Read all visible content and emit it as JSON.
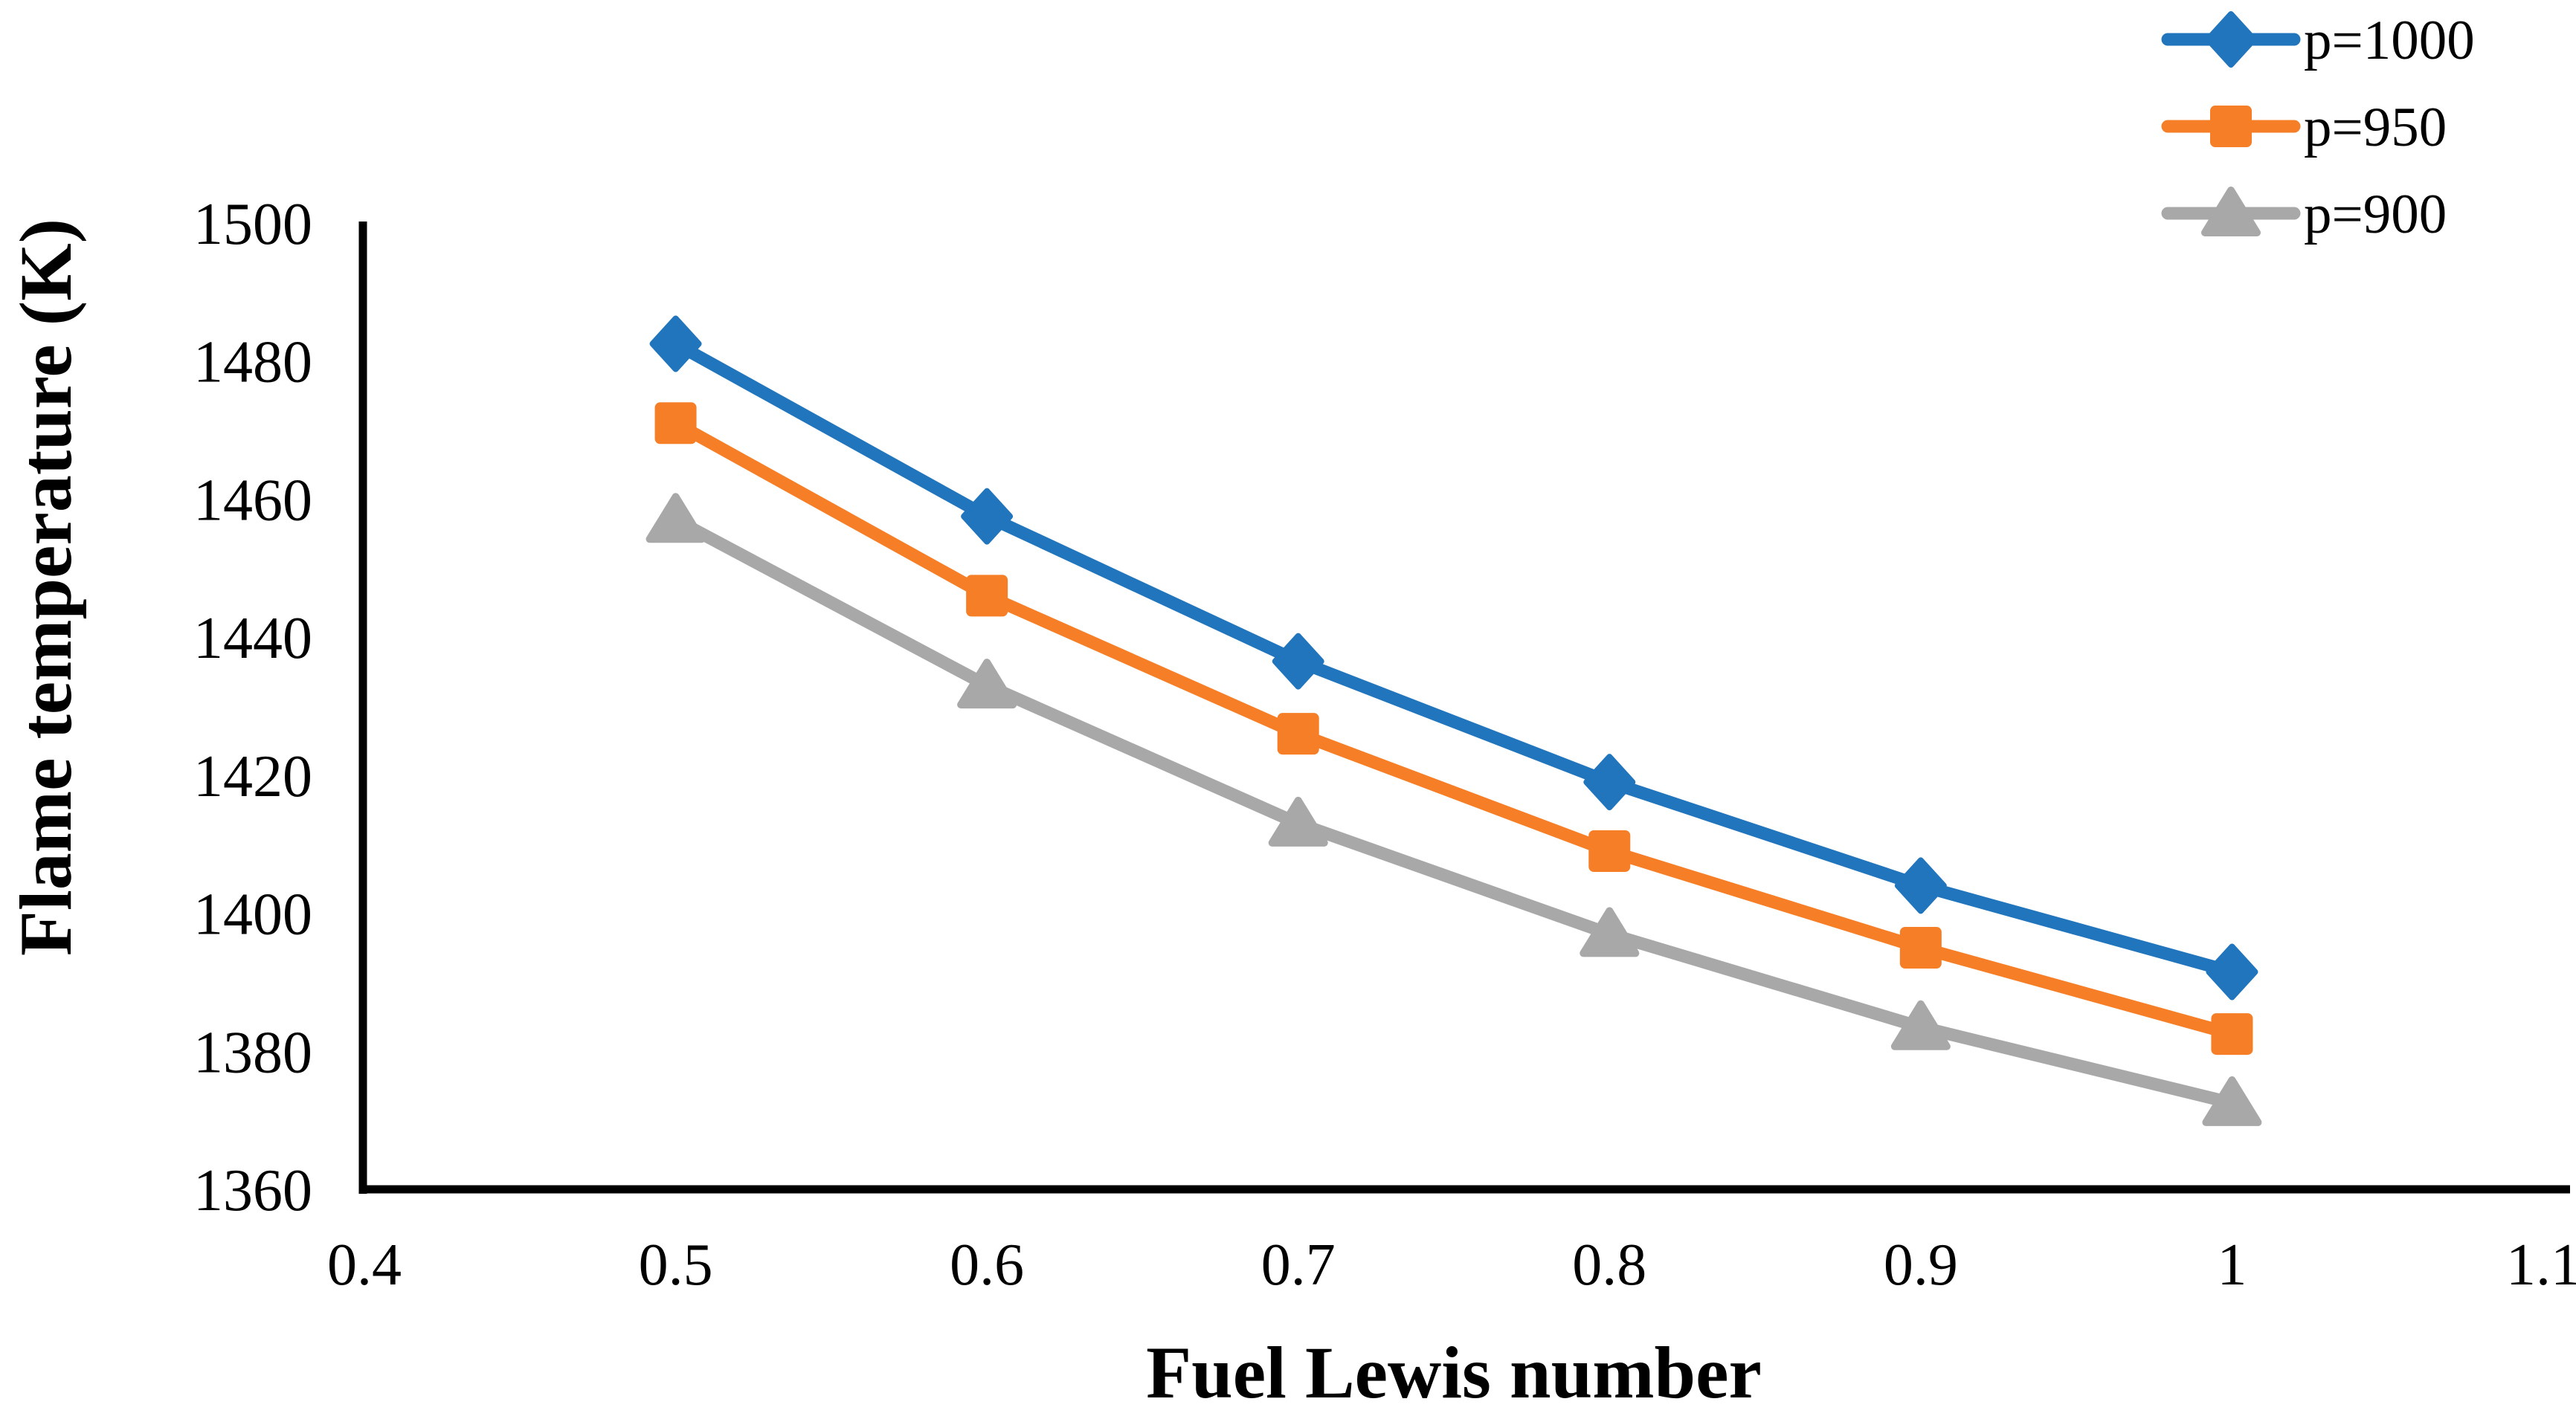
{
  "chart_data": {
    "type": "line",
    "title": "",
    "xlabel": "Fuel Lewis number",
    "ylabel": "Flame temperature (K)",
    "xlim": [
      0.4,
      1.1
    ],
    "ylim": [
      1360,
      1500
    ],
    "x_tick_labels": [
      "0.4",
      "0.5",
      "0.6",
      "0.7",
      "0.8",
      "0.9",
      "1",
      "1.1"
    ],
    "x_tick_values": [
      0.4,
      0.5,
      0.6,
      0.7,
      0.8,
      0.9,
      1.0,
      1.1
    ],
    "y_tick_values": [
      1360,
      1380,
      1400,
      1420,
      1440,
      1460,
      1480,
      1500
    ],
    "x": [
      0.5,
      0.6,
      0.7,
      0.8,
      0.9,
      1.0
    ],
    "series": [
      {
        "name": "p=1000",
        "marker": "diamond",
        "color": "#2175BC",
        "values": [
          1482.5,
          1457.5,
          1436.5,
          1419,
          1404,
          1391.5
        ]
      },
      {
        "name": "p=950",
        "marker": "square",
        "color": "#F57E27",
        "values": [
          1471,
          1446,
          1426,
          1409,
          1395,
          1382.5
        ]
      },
      {
        "name": "p=900",
        "marker": "triangle",
        "color": "#A8A8A8",
        "values": [
          1457,
          1433,
          1413,
          1397,
          1383.5,
          1372.5
        ]
      }
    ],
    "legend_position": "top-right",
    "grid": false,
    "background": "#FFFFFF",
    "axis_color": "#000000"
  }
}
